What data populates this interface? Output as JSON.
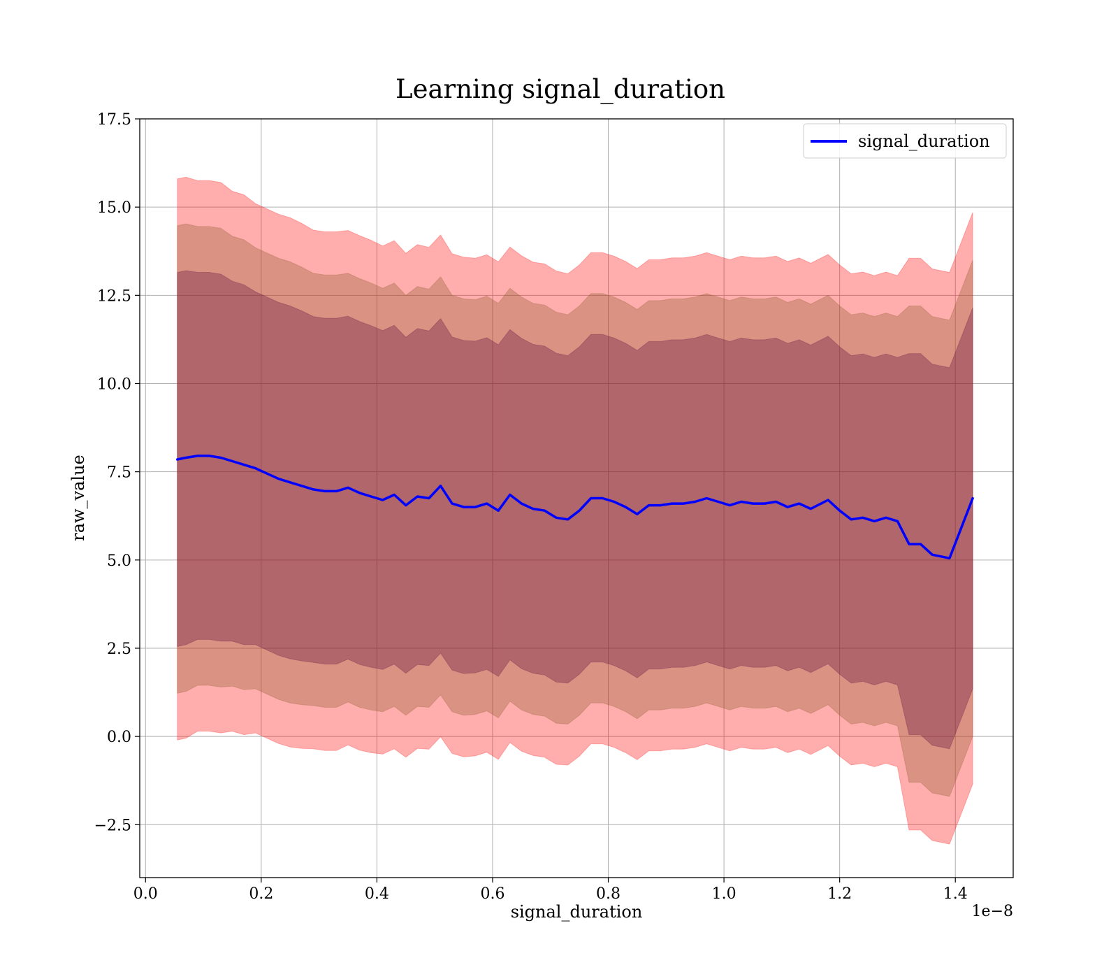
{
  "chart_data": {
    "type": "line",
    "title": "Learning signal_duration",
    "xlabel": "signal_duration",
    "ylabel": "raw_value",
    "x_offset_label": "1e−8",
    "xlim": [
      -0.01,
      1.5
    ],
    "ylim": [
      -4.0,
      17.5
    ],
    "x_ticks": [
      0.0,
      0.2,
      0.4,
      0.6,
      0.8,
      1.0,
      1.2,
      1.4
    ],
    "x_tick_labels": [
      "0.0",
      "0.2",
      "0.4",
      "0.6",
      "0.8",
      "1.0",
      "1.2",
      "1.4"
    ],
    "y_ticks": [
      -2.5,
      0.0,
      2.5,
      5.0,
      7.5,
      10.0,
      12.5,
      15.0,
      17.5
    ],
    "y_tick_labels": [
      "−2.5",
      "0.0",
      "2.5",
      "5.0",
      "7.5",
      "10.0",
      "12.5",
      "15.0",
      "17.5"
    ],
    "grid": true,
    "legend_position": "top-right",
    "colors": {
      "line": "#0000ff",
      "band_outer": "#ff0000",
      "band_middle": "#8b5a2b",
      "band_inner": "#5a0a3c"
    },
    "band_opacity": 0.32,
    "band_sigma_multipliers": [
      3,
      2.5,
      2
    ],
    "series": [
      {
        "name": "signal_duration",
        "x": [
          0.055,
          0.07,
          0.09,
          0.11,
          0.13,
          0.15,
          0.17,
          0.19,
          0.21,
          0.23,
          0.25,
          0.27,
          0.29,
          0.31,
          0.33,
          0.35,
          0.37,
          0.39,
          0.41,
          0.43,
          0.45,
          0.47,
          0.49,
          0.51,
          0.53,
          0.55,
          0.57,
          0.59,
          0.61,
          0.63,
          0.65,
          0.67,
          0.69,
          0.71,
          0.73,
          0.75,
          0.77,
          0.79,
          0.81,
          0.83,
          0.85,
          0.87,
          0.89,
          0.91,
          0.93,
          0.95,
          0.97,
          0.99,
          1.01,
          1.03,
          1.05,
          1.07,
          1.09,
          1.11,
          1.13,
          1.15,
          1.18,
          1.2,
          1.22,
          1.24,
          1.26,
          1.28,
          1.3,
          1.32,
          1.34,
          1.36,
          1.39,
          1.43
        ],
        "y": [
          7.85,
          7.9,
          7.95,
          7.95,
          7.9,
          7.8,
          7.7,
          7.6,
          7.45,
          7.3,
          7.2,
          7.1,
          7.0,
          6.95,
          6.95,
          7.05,
          6.9,
          6.8,
          6.7,
          6.85,
          6.55,
          6.8,
          6.75,
          7.1,
          6.6,
          6.5,
          6.5,
          6.6,
          6.4,
          6.85,
          6.6,
          6.45,
          6.4,
          6.2,
          6.15,
          6.4,
          6.75,
          6.75,
          6.65,
          6.5,
          6.3,
          6.55,
          6.55,
          6.6,
          6.6,
          6.65,
          6.75,
          6.65,
          6.55,
          6.65,
          6.6,
          6.6,
          6.65,
          6.5,
          6.6,
          6.45,
          6.7,
          6.4,
          6.15,
          6.2,
          6.1,
          6.2,
          6.1,
          5.45,
          5.45,
          5.15,
          5.05,
          6.75
        ],
        "sigma": [
          2.65,
          2.65,
          2.6,
          2.6,
          2.6,
          2.55,
          2.55,
          2.5,
          2.5,
          2.5,
          2.5,
          2.48,
          2.45,
          2.45,
          2.45,
          2.43,
          2.43,
          2.42,
          2.4,
          2.4,
          2.38,
          2.38,
          2.37,
          2.37,
          2.36,
          2.36,
          2.35,
          2.35,
          2.35,
          2.34,
          2.34,
          2.33,
          2.33,
          2.33,
          2.32,
          2.32,
          2.32,
          2.32,
          2.32,
          2.32,
          2.32,
          2.32,
          2.32,
          2.32,
          2.32,
          2.32,
          2.32,
          2.32,
          2.32,
          2.32,
          2.32,
          2.32,
          2.32,
          2.32,
          2.32,
          2.32,
          2.32,
          2.32,
          2.32,
          2.32,
          2.32,
          2.32,
          2.32,
          2.7,
          2.7,
          2.7,
          2.7,
          2.7
        ]
      }
    ]
  }
}
